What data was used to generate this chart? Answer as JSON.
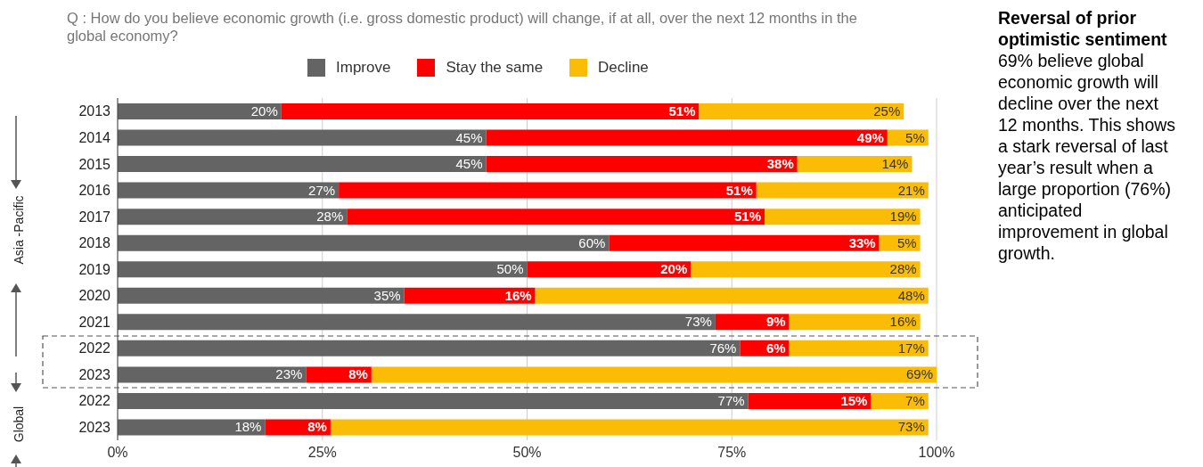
{
  "chart_data": {
    "type": "bar",
    "orientation": "horizontal",
    "stacked": true,
    "legend": "top",
    "grid": "x",
    "categories": [
      "2013",
      "2014",
      "2015",
      "2016",
      "2017",
      "2018",
      "2019",
      "2020",
      "2021",
      "2022",
      "2023",
      "2022",
      "2023"
    ],
    "series": [
      {
        "name": "Improve",
        "color": "#646464",
        "values": [
          20,
          45,
          45,
          27,
          28,
          60,
          50,
          35,
          73,
          76,
          23,
          77,
          18
        ],
        "value_labels": [
          "20%",
          "45%",
          "45%",
          "27%",
          "28%",
          "60%",
          "50%",
          "35%",
          "73%",
          "76%",
          "23%",
          "77%",
          "18%"
        ]
      },
      {
        "name": "Stay the same",
        "color": "#ff0000",
        "values": [
          51,
          49,
          38,
          51,
          51,
          33,
          20,
          16,
          9,
          6,
          8,
          15,
          8
        ],
        "value_labels": [
          "51%",
          "49%",
          "38%",
          "51%",
          "51%",
          "33%",
          "20%",
          "16%",
          "9%",
          "6%",
          "8%",
          "15%",
          "8%"
        ]
      },
      {
        "name": "Decline",
        "color": "#fbbc05",
        "values": [
          25,
          5,
          14,
          21,
          19,
          5,
          28,
          48,
          16,
          17,
          69,
          7,
          73
        ],
        "value_labels": [
          "25%",
          "5%",
          "14%",
          "21%",
          "19%",
          "5%",
          "28%",
          "48%",
          "16%",
          "17%",
          "69%",
          "7%",
          "73%"
        ]
      }
    ],
    "xlim": [
      0,
      100
    ],
    "xticks": [
      {
        "value": 0,
        "label": "0%"
      },
      {
        "value": 25,
        "label": "25%"
      },
      {
        "value": 50,
        "label": "50%"
      },
      {
        "value": 75,
        "label": "75%"
      },
      {
        "value": 100,
        "label": "100%"
      }
    ],
    "annotations": [
      "Q : How do you believe economic growth (i.e. gross domestic product) will change, if at all, over the next 12 months in the global economy?",
      "Reversal of prior optimistic sentiment",
      "69% believe global economic growth will decline over the next 12 months. This shows a stark reversal of last year’s result when a large proportion (76%) anticipated improvement in global growth.",
      "Asia -Pacific",
      "Global"
    ]
  }
}
